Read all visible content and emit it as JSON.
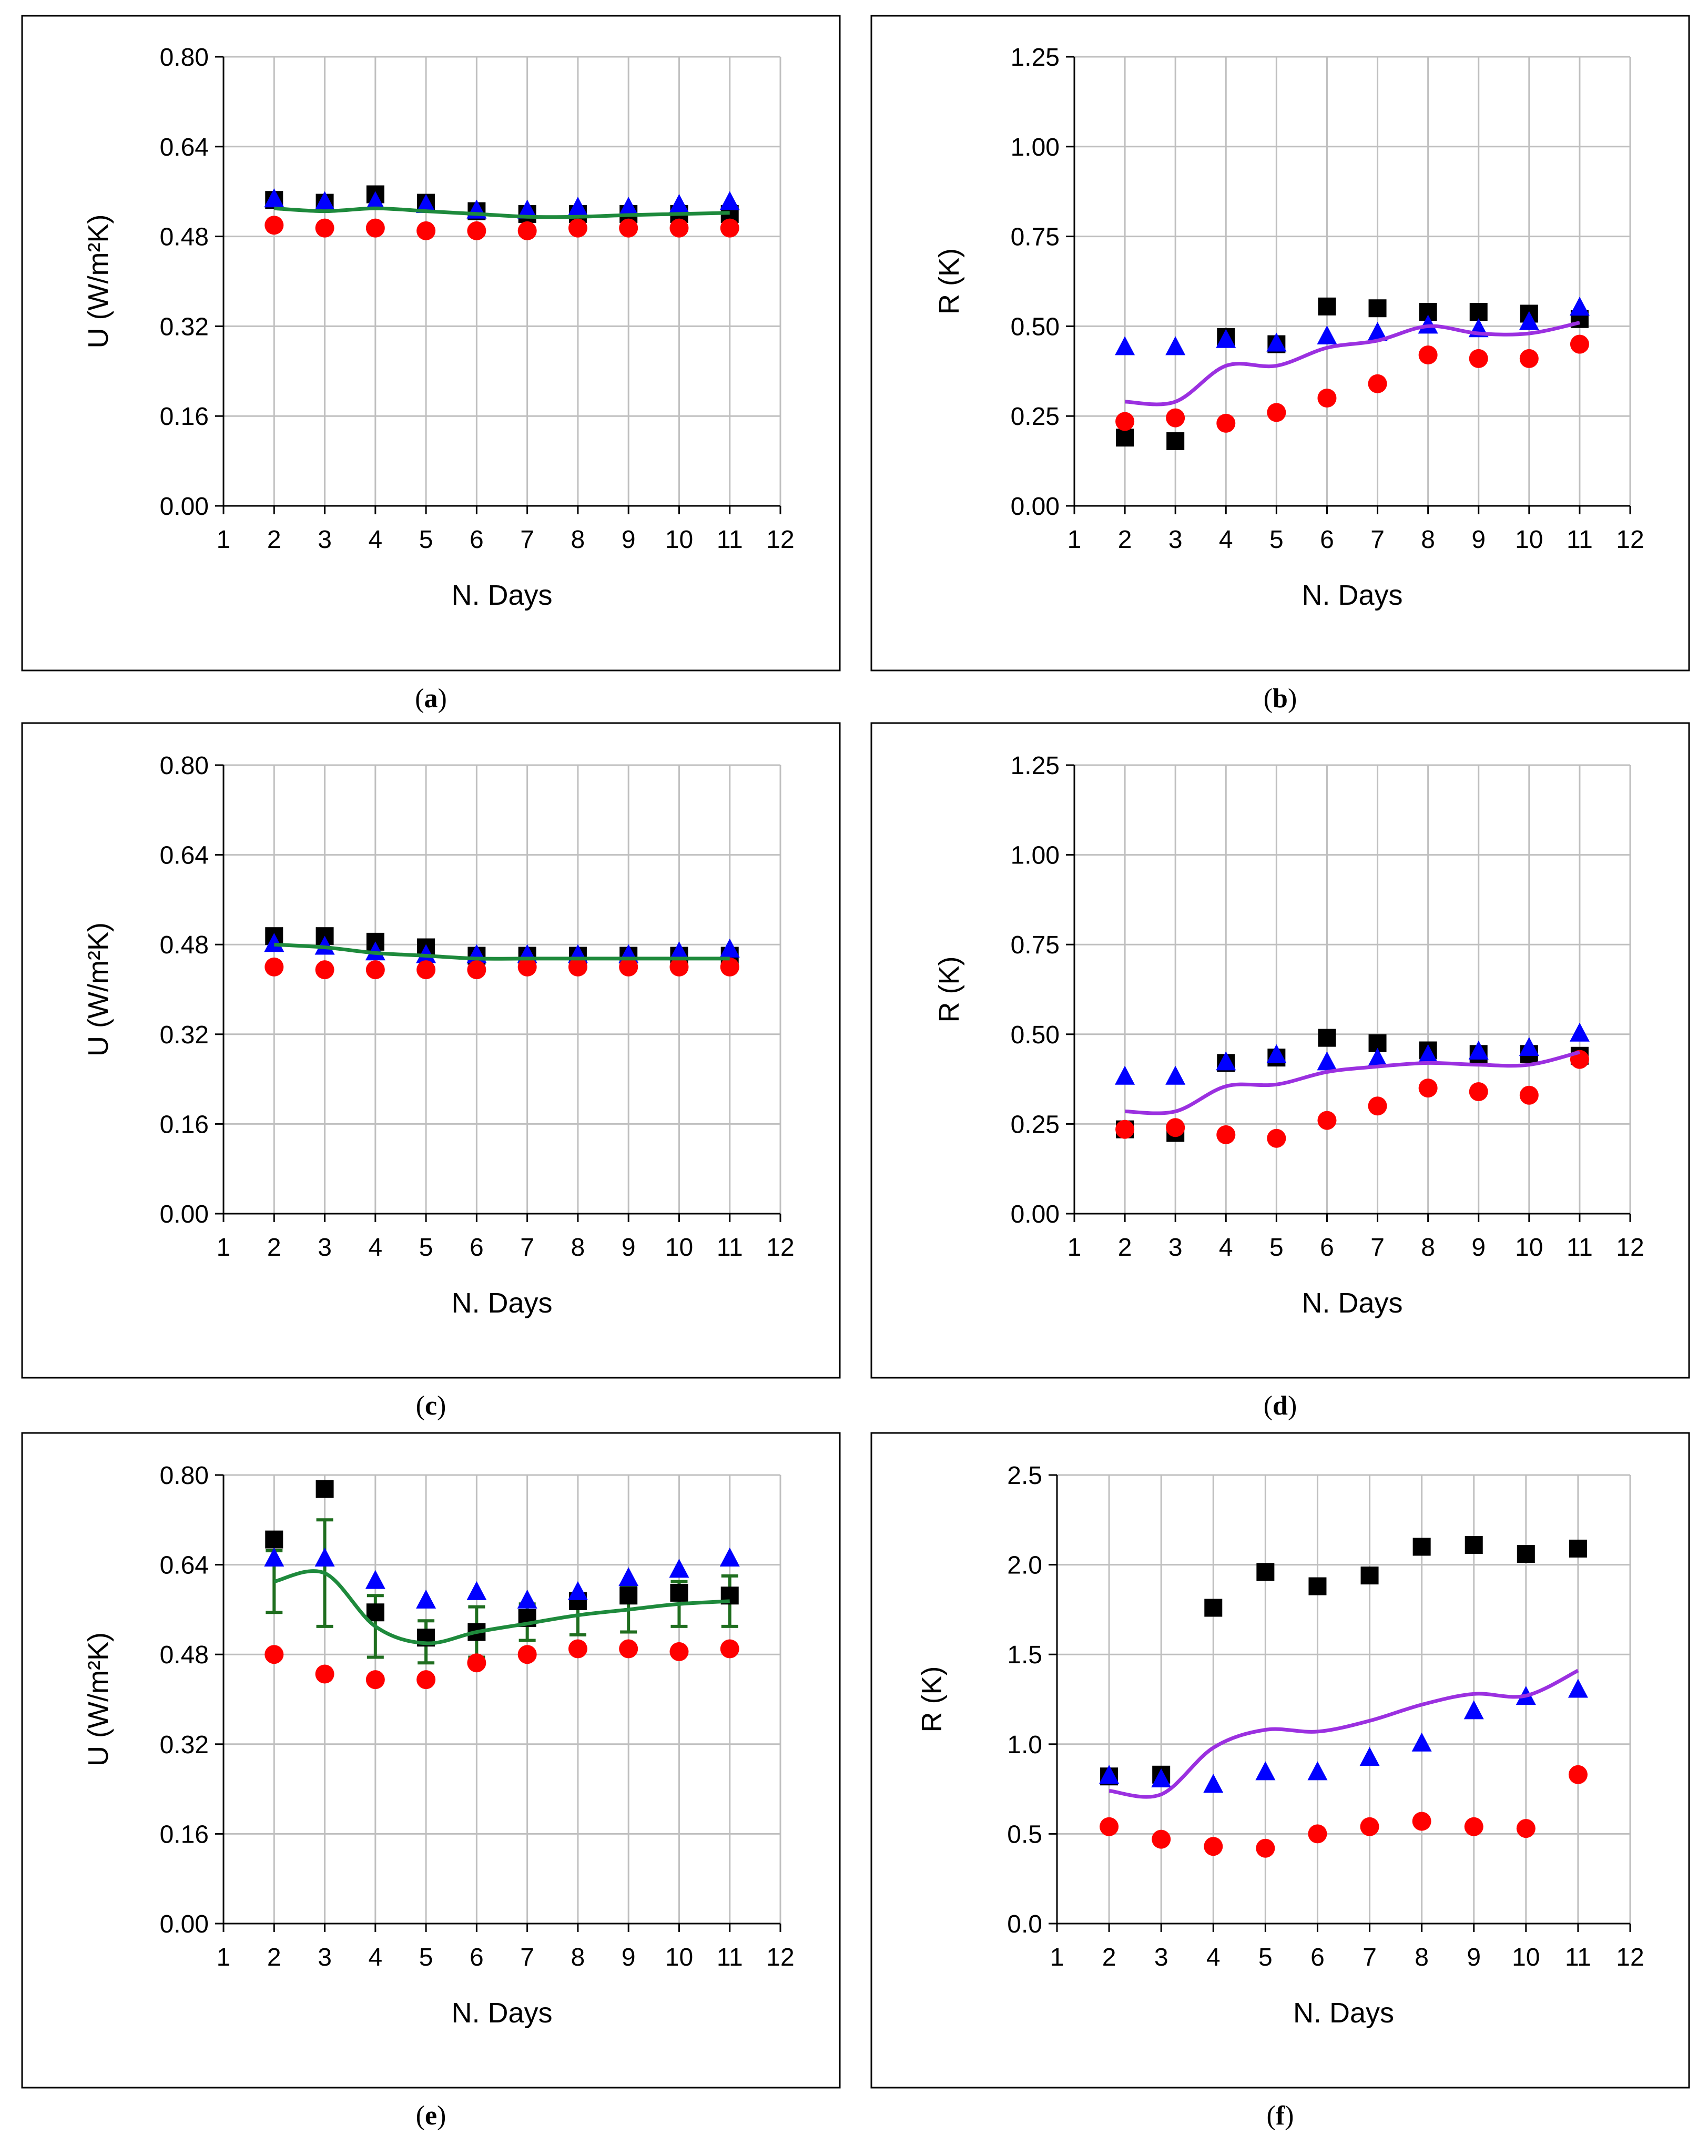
{
  "figure": {
    "panels": [
      {
        "letter": "a",
        "caption_open": "(",
        "caption_close": ")"
      },
      {
        "letter": "b",
        "caption_open": "(",
        "caption_close": ")"
      },
      {
        "letter": "c",
        "caption_open": "(",
        "caption_close": ")"
      },
      {
        "letter": "d",
        "caption_open": "(",
        "caption_close": ")"
      },
      {
        "letter": "e",
        "caption_open": "(",
        "caption_close": ")"
      },
      {
        "letter": "f",
        "caption_open": "(",
        "caption_close": ")"
      }
    ]
  },
  "colors": {
    "square": "#000000",
    "triangle": "#0000ff",
    "circle": "#ff0000",
    "u_fit": "#1e8a3c",
    "r_fit": "#9b30e0",
    "error_bar": "#1f6e1f",
    "grid": "#bfbfbf",
    "frame": "#000000"
  },
  "chart_data": [
    {
      "panel": "a",
      "type": "scatter",
      "xlabel": "N. Days",
      "ylabel": "U (W/m²K)",
      "xlim": [
        1,
        12
      ],
      "ylim": [
        0,
        0.8
      ],
      "x_ticks": [
        1,
        2,
        3,
        4,
        5,
        6,
        7,
        8,
        9,
        10,
        11,
        12
      ],
      "y_ticks": [
        "0.00",
        "0.16",
        "0.32",
        "0.48",
        "0.64",
        "0.80"
      ],
      "x": [
        2,
        3,
        4,
        5,
        6,
        7,
        8,
        9,
        10,
        11
      ],
      "series": [
        {
          "name": "black squares",
          "marker": "square",
          "values": [
            0.545,
            0.54,
            0.555,
            0.54,
            0.525,
            0.52,
            0.52,
            0.52,
            0.52,
            0.52
          ]
        },
        {
          "name": "blue triangles",
          "marker": "triangle",
          "values": [
            0.545,
            0.54,
            0.54,
            0.535,
            0.525,
            0.525,
            0.53,
            0.53,
            0.535,
            0.54
          ]
        },
        {
          "name": "red circles",
          "marker": "circle",
          "values": [
            0.5,
            0.495,
            0.495,
            0.49,
            0.49,
            0.49,
            0.495,
            0.495,
            0.495,
            0.495
          ]
        },
        {
          "name": "fit",
          "marker": "line",
          "values": [
            0.53,
            0.525,
            0.53,
            0.525,
            0.52,
            0.515,
            0.515,
            0.518,
            0.52,
            0.522
          ]
        }
      ]
    },
    {
      "panel": "b",
      "type": "scatter",
      "xlabel": "N. Days",
      "ylabel": "R (K)",
      "xlim": [
        1,
        12
      ],
      "ylim": [
        0,
        1.25
      ],
      "x_ticks": [
        1,
        2,
        3,
        4,
        5,
        6,
        7,
        8,
        9,
        10,
        11,
        12
      ],
      "y_ticks": [
        "0.00",
        "0.25",
        "0.50",
        "0.75",
        "1.00",
        "1.25"
      ],
      "x": [
        2,
        3,
        4,
        5,
        6,
        7,
        8,
        9,
        10,
        11
      ],
      "series": [
        {
          "name": "black squares",
          "marker": "square",
          "values": [
            0.19,
            0.18,
            0.47,
            0.45,
            0.555,
            0.55,
            0.54,
            0.54,
            0.535,
            0.52
          ]
        },
        {
          "name": "blue triangles",
          "marker": "triangle",
          "values": [
            0.44,
            0.44,
            0.46,
            0.45,
            0.47,
            0.48,
            0.5,
            0.49,
            0.51,
            0.55
          ]
        },
        {
          "name": "red circles",
          "marker": "circle",
          "values": [
            0.235,
            0.245,
            0.23,
            0.26,
            0.3,
            0.34,
            0.42,
            0.41,
            0.41,
            0.45
          ]
        },
        {
          "name": "fit",
          "marker": "line",
          "values": [
            0.29,
            0.29,
            0.39,
            0.39,
            0.44,
            0.46,
            0.5,
            0.48,
            0.48,
            0.51
          ]
        }
      ]
    },
    {
      "panel": "c",
      "type": "scatter",
      "xlabel": "N. Days",
      "ylabel": "U (W/m²K)",
      "xlim": [
        1,
        12
      ],
      "ylim": [
        0,
        0.8
      ],
      "x_ticks": [
        1,
        2,
        3,
        4,
        5,
        6,
        7,
        8,
        9,
        10,
        11,
        12
      ],
      "y_ticks": [
        "0.00",
        "0.16",
        "0.32",
        "0.48",
        "0.64",
        "0.80"
      ],
      "x": [
        2,
        3,
        4,
        5,
        6,
        7,
        8,
        9,
        10,
        11
      ],
      "series": [
        {
          "name": "black squares",
          "marker": "square",
          "values": [
            0.495,
            0.495,
            0.485,
            0.475,
            0.46,
            0.46,
            0.46,
            0.46,
            0.46,
            0.46
          ]
        },
        {
          "name": "blue triangles",
          "marker": "triangle",
          "values": [
            0.48,
            0.475,
            0.465,
            0.46,
            0.46,
            0.46,
            0.46,
            0.46,
            0.465,
            0.47
          ]
        },
        {
          "name": "red circles",
          "marker": "circle",
          "values": [
            0.44,
            0.435,
            0.435,
            0.435,
            0.435,
            0.44,
            0.44,
            0.44,
            0.44,
            0.44
          ]
        },
        {
          "name": "fit",
          "marker": "line",
          "values": [
            0.48,
            0.475,
            0.465,
            0.46,
            0.455,
            0.455,
            0.455,
            0.455,
            0.455,
            0.455
          ]
        }
      ]
    },
    {
      "panel": "d",
      "type": "scatter",
      "xlabel": "N. Days",
      "ylabel": "R (K)",
      "xlim": [
        1,
        12
      ],
      "ylim": [
        0,
        1.25
      ],
      "x_ticks": [
        1,
        2,
        3,
        4,
        5,
        6,
        7,
        8,
        9,
        10,
        11,
        12
      ],
      "y_ticks": [
        "0.00",
        "0.25",
        "0.50",
        "0.75",
        "1.00",
        "1.25"
      ],
      "x": [
        2,
        3,
        4,
        5,
        6,
        7,
        8,
        9,
        10,
        11
      ],
      "series": [
        {
          "name": "black squares",
          "marker": "square",
          "values": [
            0.235,
            0.225,
            0.42,
            0.435,
            0.49,
            0.475,
            0.455,
            0.445,
            0.445,
            0.44
          ]
        },
        {
          "name": "blue triangles",
          "marker": "triangle",
          "values": [
            0.38,
            0.38,
            0.42,
            0.44,
            0.42,
            0.43,
            0.44,
            0.45,
            0.46,
            0.5
          ]
        },
        {
          "name": "red circles",
          "marker": "circle",
          "values": [
            0.235,
            0.24,
            0.22,
            0.21,
            0.26,
            0.3,
            0.35,
            0.34,
            0.33,
            0.43
          ]
        },
        {
          "name": "fit",
          "marker": "line",
          "values": [
            0.285,
            0.285,
            0.355,
            0.36,
            0.395,
            0.41,
            0.42,
            0.415,
            0.415,
            0.45
          ]
        }
      ]
    },
    {
      "panel": "e",
      "type": "scatter",
      "xlabel": "N. Days",
      "ylabel": "U (W/m²K)",
      "xlim": [
        1,
        12
      ],
      "ylim": [
        0,
        0.8
      ],
      "x_ticks": [
        1,
        2,
        3,
        4,
        5,
        6,
        7,
        8,
        9,
        10,
        11,
        12
      ],
      "y_ticks": [
        "0.00",
        "0.16",
        "0.32",
        "0.48",
        "0.64",
        "0.80"
      ],
      "x": [
        2,
        3,
        4,
        5,
        6,
        7,
        8,
        9,
        10,
        11
      ],
      "series": [
        {
          "name": "black squares",
          "marker": "square",
          "values": [
            0.685,
            0.775,
            0.555,
            0.51,
            0.52,
            0.545,
            0.575,
            0.585,
            0.59,
            0.585
          ]
        },
        {
          "name": "blue triangles",
          "marker": "triangle",
          "values": [
            0.65,
            0.65,
            0.61,
            0.575,
            0.59,
            0.575,
            0.59,
            0.615,
            0.63,
            0.65
          ]
        },
        {
          "name": "red circles",
          "marker": "circle",
          "values": [
            0.48,
            0.445,
            0.435,
            0.435,
            0.465,
            0.48,
            0.49,
            0.49,
            0.485,
            0.49
          ]
        },
        {
          "name": "fit",
          "marker": "line",
          "values": [
            0.61,
            0.625,
            0.53,
            0.5,
            0.52,
            0.535,
            0.55,
            0.56,
            0.57,
            0.575
          ]
        },
        {
          "name": "error bar low",
          "marker": "errorbar",
          "values": [
            0.555,
            0.53,
            0.475,
            0.465,
            0.475,
            0.505,
            0.515,
            0.52,
            0.53,
            0.53
          ]
        },
        {
          "name": "error bar high",
          "marker": "errorbar",
          "values": [
            0.665,
            0.72,
            0.585,
            0.54,
            0.565,
            0.57,
            0.585,
            0.6,
            0.61,
            0.62
          ]
        }
      ]
    },
    {
      "panel": "f",
      "type": "scatter",
      "xlabel": "N. Days",
      "ylabel": "R (K)",
      "xlim": [
        1,
        12
      ],
      "ylim": [
        0,
        2.5
      ],
      "x_ticks": [
        1,
        2,
        3,
        4,
        5,
        6,
        7,
        8,
        9,
        10,
        11,
        12
      ],
      "y_ticks": [
        "0.0",
        "0.5",
        "1.0",
        "1.5",
        "2.0",
        "2.5"
      ],
      "x": [
        2,
        3,
        4,
        5,
        6,
        7,
        8,
        9,
        10,
        11
      ],
      "series": [
        {
          "name": "black squares",
          "marker": "square",
          "values": [
            0.82,
            0.83,
            1.76,
            1.96,
            1.88,
            1.94,
            2.1,
            2.11,
            2.06,
            2.09
          ]
        },
        {
          "name": "blue triangles",
          "marker": "triangle",
          "values": [
            0.82,
            0.8,
            0.77,
            0.84,
            0.84,
            0.92,
            1.0,
            1.18,
            1.26,
            1.3
          ]
        },
        {
          "name": "red circles",
          "marker": "circle",
          "values": [
            0.54,
            0.47,
            0.43,
            0.42,
            0.5,
            0.54,
            0.57,
            0.54,
            0.53,
            0.83
          ]
        },
        {
          "name": "fit",
          "marker": "line",
          "values": [
            0.74,
            0.72,
            0.98,
            1.08,
            1.07,
            1.13,
            1.22,
            1.28,
            1.27,
            1.41
          ]
        }
      ]
    }
  ]
}
